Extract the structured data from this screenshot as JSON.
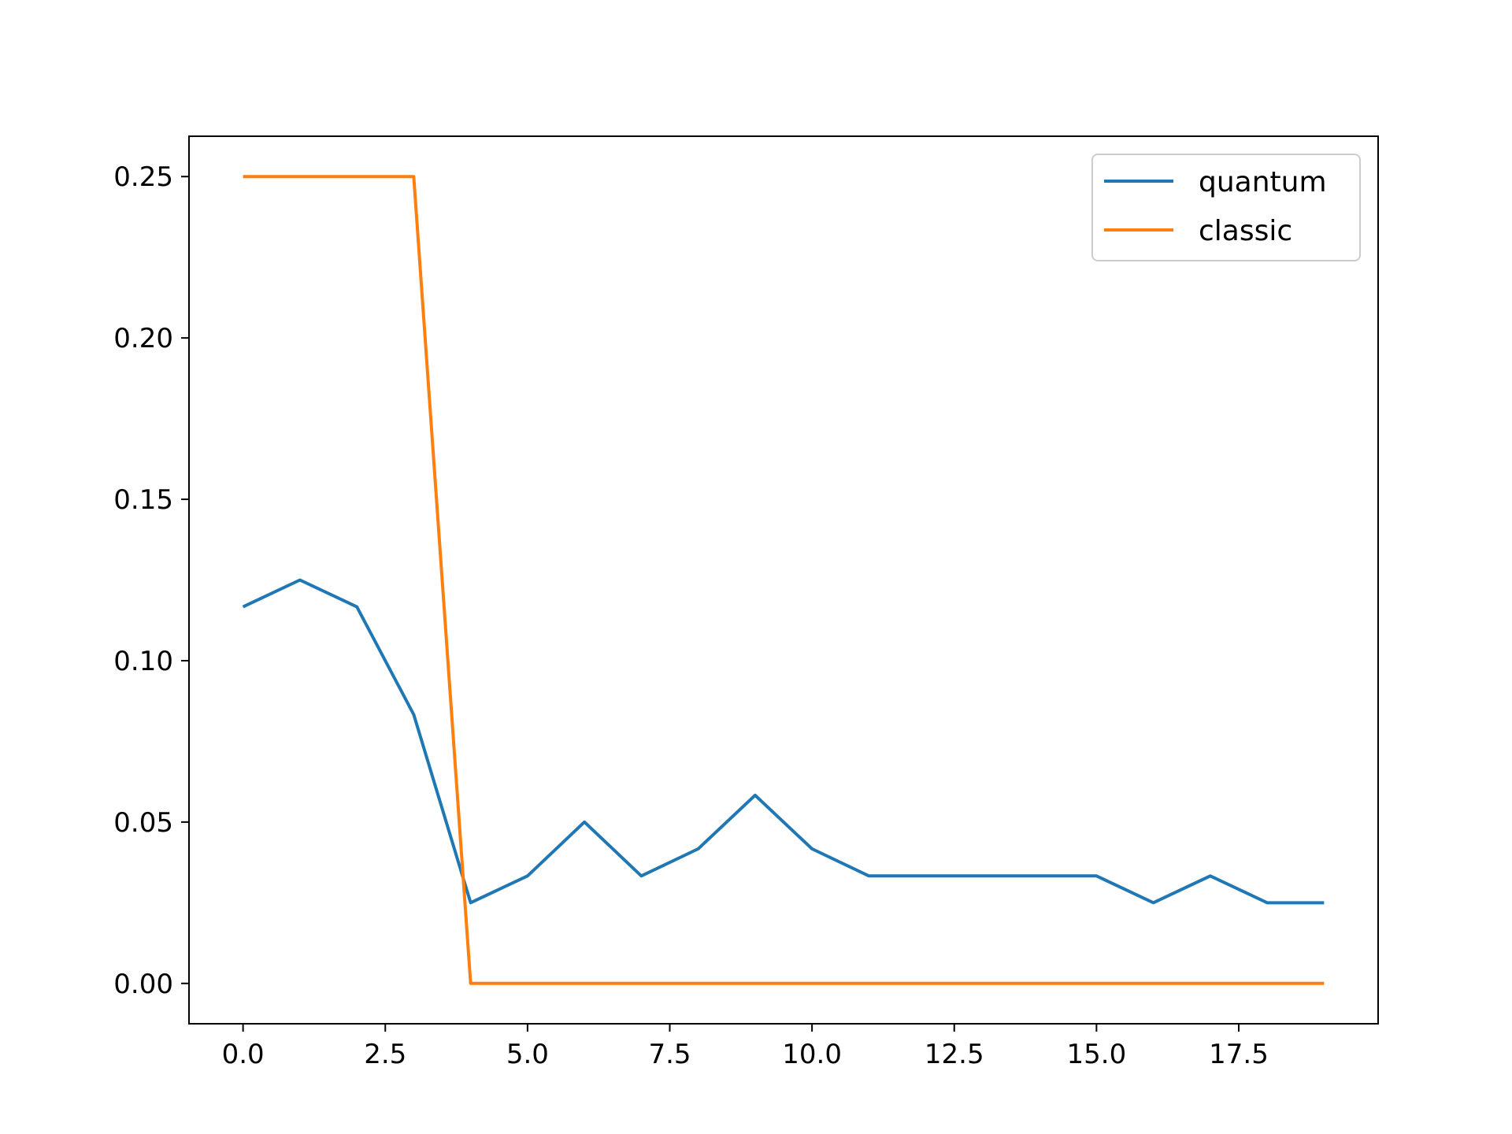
{
  "chart_data": {
    "type": "line",
    "title": "",
    "xlabel": "",
    "ylabel": "",
    "xlim": [
      -0.95,
      19.95
    ],
    "ylim": [
      -0.0125,
      0.2625
    ],
    "x_ticks": [
      0.0,
      2.5,
      5.0,
      7.5,
      10.0,
      12.5,
      15.0,
      17.5
    ],
    "x_tick_labels": [
      "0.0",
      "2.5",
      "5.0",
      "7.5",
      "10.0",
      "12.5",
      "15.0",
      "17.5"
    ],
    "y_ticks": [
      0.0,
      0.05,
      0.1,
      0.15,
      0.2,
      0.25
    ],
    "y_tick_labels": [
      "0.00",
      "0.05",
      "0.10",
      "0.15",
      "0.20",
      "0.25"
    ],
    "grid": false,
    "legend_position": "top-right",
    "x": [
      0,
      1,
      2,
      3,
      4,
      5,
      6,
      7,
      8,
      9,
      10,
      11,
      12,
      13,
      14,
      15,
      16,
      17,
      18,
      19
    ],
    "series": [
      {
        "name": "quantum",
        "color": "#1f77b4",
        "values": [
          0.1167,
          0.125,
          0.1167,
          0.0833,
          0.025,
          0.0333,
          0.05,
          0.0333,
          0.0417,
          0.0583,
          0.0417,
          0.0333,
          0.0333,
          0.0333,
          0.0333,
          0.0333,
          0.025,
          0.0333,
          0.025,
          0.025
        ]
      },
      {
        "name": "classic",
        "color": "#ff7f0e",
        "values": [
          0.25,
          0.25,
          0.25,
          0.25,
          0.0,
          0.0,
          0.0,
          0.0,
          0.0,
          0.0,
          0.0,
          0.0,
          0.0,
          0.0,
          0.0,
          0.0,
          0.0,
          0.0,
          0.0,
          0.0
        ]
      }
    ]
  }
}
